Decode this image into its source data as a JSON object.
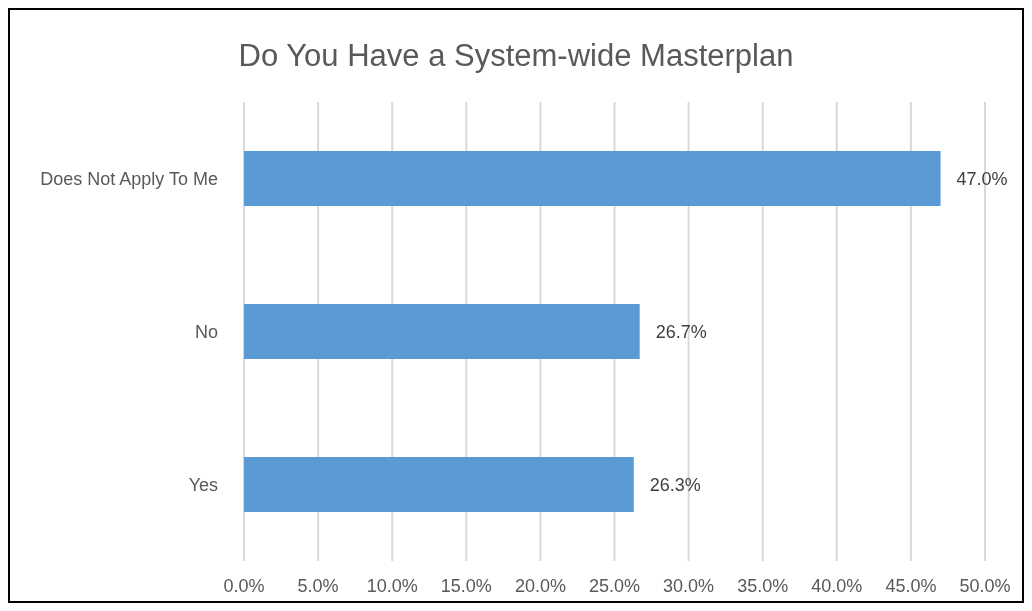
{
  "chart_data": {
    "type": "bar",
    "orientation": "horizontal",
    "title": "Do You Have a System-wide Masterplan",
    "categories": [
      "Does Not Apply To Me",
      "No",
      "Yes"
    ],
    "values": [
      47.0,
      26.7,
      26.3
    ],
    "value_labels": [
      "47.0%",
      "26.7%",
      "26.3%"
    ],
    "color": "#5b9bd5",
    "xlim": [
      0,
      50
    ],
    "xticks": [
      {
        "value": 0,
        "label": "0.0%"
      },
      {
        "value": 5,
        "label": "5.0%"
      },
      {
        "value": 10,
        "label": "10.0%"
      },
      {
        "value": 15,
        "label": "15.0%"
      },
      {
        "value": 20,
        "label": "20.0%"
      },
      {
        "value": 25,
        "label": "25.0%"
      },
      {
        "value": 30,
        "label": "30.0%"
      },
      {
        "value": 35,
        "label": "35.0%"
      },
      {
        "value": 40,
        "label": "40.0%"
      },
      {
        "value": 45,
        "label": "45.0%"
      },
      {
        "value": 50,
        "label": "50.0%"
      }
    ],
    "grid": "x",
    "legend": false
  }
}
